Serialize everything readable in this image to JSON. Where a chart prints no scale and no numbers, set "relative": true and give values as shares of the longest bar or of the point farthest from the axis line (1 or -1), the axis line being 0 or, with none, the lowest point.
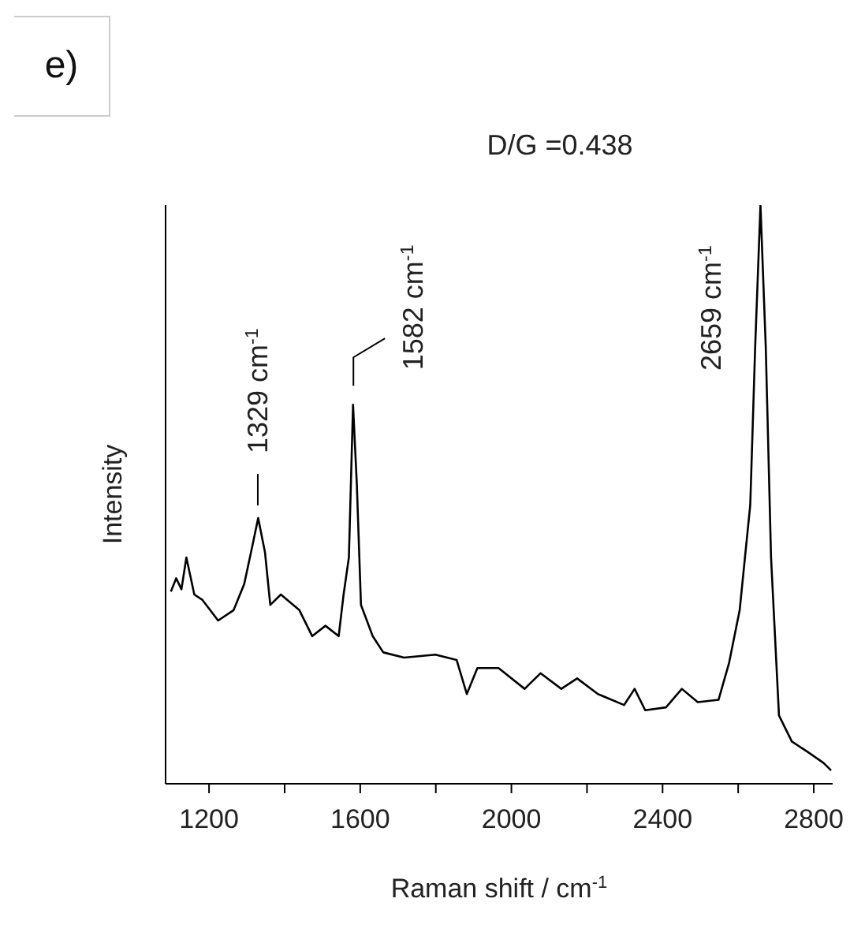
{
  "chart_data": {
    "type": "line",
    "title": "D/G =0.438",
    "xlabel": "Raman shift / cm$^{-1}$",
    "ylabel": "Intensity",
    "relative": true,
    "x": [
      1099,
      1113,
      1127,
      1140,
      1161,
      1182,
      1203,
      1224,
      1265,
      1293,
      1314,
      1330,
      1348,
      1362,
      1390,
      1439,
      1473,
      1508,
      1543,
      1556,
      1570,
      1581,
      1591,
      1602,
      1633,
      1661,
      1716,
      1799,
      1855,
      1882,
      1910,
      1966,
      2035,
      2077,
      2132,
      2174,
      2229,
      2298,
      2326,
      2354,
      2409,
      2451,
      2493,
      2548,
      2576,
      2604,
      2632,
      2645,
      2659,
      2673,
      2687,
      2708,
      2742,
      2784,
      2826,
      2846
    ],
    "series": [
      {
        "color": "#000000",
        "values": [
          0.332,
          0.355,
          0.336,
          0.391,
          0.327,
          0.318,
          0.3,
          0.282,
          0.3,
          0.345,
          0.409,
          0.459,
          0.4,
          0.309,
          0.327,
          0.3,
          0.255,
          0.273,
          0.255,
          0.327,
          0.391,
          0.655,
          0.518,
          0.309,
          0.255,
          0.227,
          0.218,
          0.223,
          0.214,
          0.155,
          0.2,
          0.2,
          0.164,
          0.191,
          0.164,
          0.182,
          0.155,
          0.136,
          0.164,
          0.127,
          0.132,
          0.164,
          0.141,
          0.145,
          0.209,
          0.3,
          0.482,
          0.755,
          1,
          0.755,
          0.391,
          0.118,
          0.073,
          0.055,
          0.036,
          0.023
        ]
      }
    ],
    "xlim": [
      1085,
      2850
    ],
    "xticks": [
      1200,
      {
        "value": 1400,
        "label": null
      },
      1600,
      {
        "value": 1800,
        "label": null
      },
      2000,
      {
        "value": 2200,
        "label": null
      },
      2400,
      {
        "value": 2600,
        "label": null
      },
      2800
    ],
    "grid": false,
    "legend": false,
    "marker": "none",
    "line_style": "solid",
    "annotations": [
      "e)",
      {
        "text": "1329 cm$^{-1}$",
        "x": 1329,
        "y": 0.459
      },
      {
        "text": "1582 cm$^{-1}$",
        "x": 1582,
        "y": 0.655
      },
      {
        "text": "2659 cm$^{-1}$",
        "x": 2659,
        "y": 1
      }
    ]
  }
}
